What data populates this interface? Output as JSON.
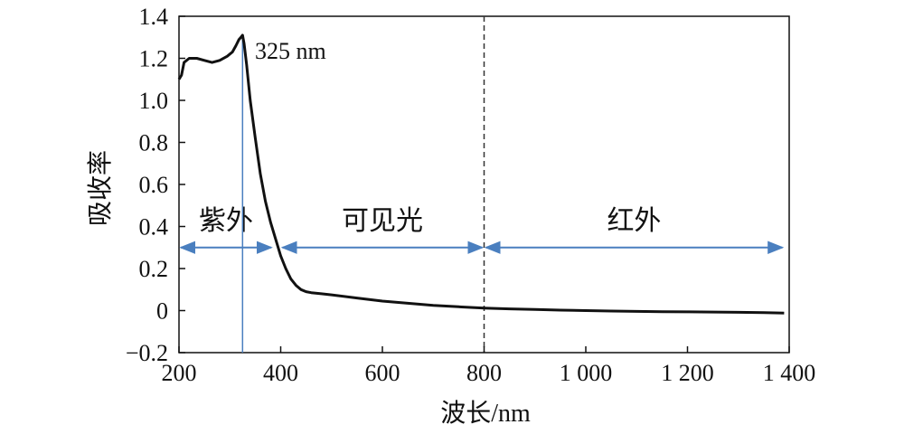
{
  "chart_data": {
    "type": "line",
    "xlabel": "波长/nm",
    "ylabel": "吸收率",
    "xlim": [
      200,
      1400
    ],
    "ylim": [
      -0.2,
      1.4
    ],
    "x_ticks": [
      200,
      400,
      600,
      800,
      1000,
      1200,
      1400
    ],
    "x_tick_labels": [
      "200",
      "400",
      "600",
      "800",
      "1 000",
      "1 200",
      "1 400"
    ],
    "y_ticks": [
      -0.2,
      0,
      0.2,
      0.4,
      0.6,
      0.8,
      1.0,
      1.2,
      1.4
    ],
    "y_tick_labels": [
      "−0.2",
      "0",
      "0.2",
      "0.4",
      "0.6",
      "0.8",
      "1.0",
      "1.2",
      "1.4"
    ],
    "grid": false,
    "series": [
      {
        "x": [
          200,
          205,
          210,
          220,
          235,
          250,
          265,
          280,
          295,
          305,
          312,
          318,
          322,
          325,
          328,
          333,
          340,
          350,
          360,
          370,
          380,
          390,
          400,
          410,
          420,
          430,
          440,
          450,
          460,
          480,
          500,
          550,
          600,
          650,
          700,
          750,
          800,
          850,
          900,
          950,
          1000,
          1050,
          1100,
          1150,
          1200,
          1250,
          1300,
          1350,
          1390
        ],
        "y": [
          1.1,
          1.12,
          1.18,
          1.2,
          1.2,
          1.19,
          1.18,
          1.19,
          1.21,
          1.23,
          1.26,
          1.29,
          1.3,
          1.31,
          1.27,
          1.17,
          1.0,
          0.82,
          0.65,
          0.52,
          0.42,
          0.34,
          0.26,
          0.2,
          0.15,
          0.12,
          0.1,
          0.09,
          0.085,
          0.08,
          0.075,
          0.06,
          0.045,
          0.035,
          0.025,
          0.018,
          0.012,
          0.008,
          0.005,
          0.002,
          0.0,
          -0.002,
          -0.004,
          -0.005,
          -0.006,
          -0.007,
          -0.008,
          -0.01,
          -0.012
        ]
      }
    ],
    "marker_line_x": 325,
    "annotation": "325 nm",
    "divider_x": 800,
    "regions": [
      {
        "label": "紫外",
        "from": 200,
        "to": 385
      },
      {
        "label": "可见光",
        "from": 400,
        "to": 800
      },
      {
        "label": "红外",
        "from": 800,
        "to": 1390
      }
    ],
    "region_arrow_y": 0.3,
    "colors": {
      "curve": "#111111",
      "marker": "#4a7fbf",
      "arrows": "#4a7fbf",
      "divider": "#333333"
    }
  }
}
